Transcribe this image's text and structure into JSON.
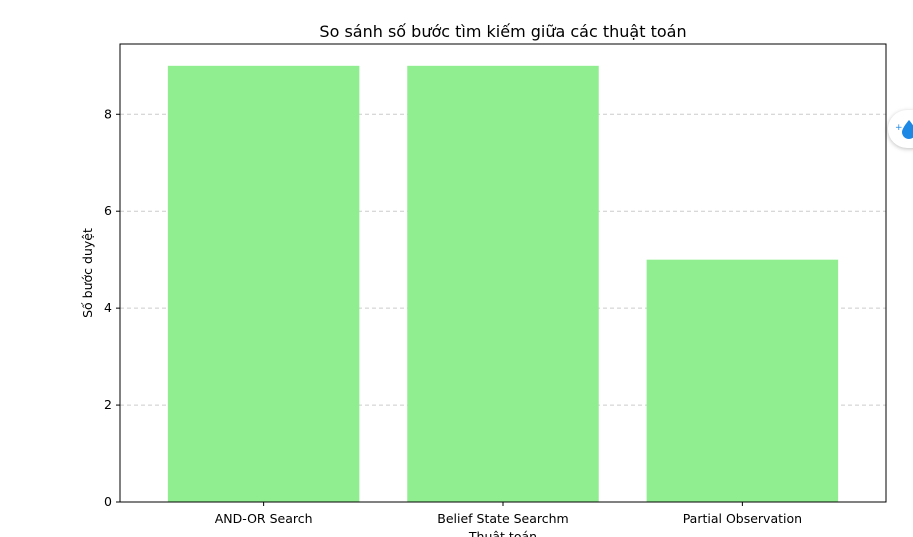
{
  "chart_data": {
    "type": "bar",
    "title": "So sánh số bước tìm kiếm giữa các thuật toán",
    "xlabel": "Thuật toán",
    "ylabel": "Số bước duyệt",
    "categories": [
      "AND-OR Search",
      "Belief State Searchm",
      "Partial Observation"
    ],
    "values": [
      9,
      9,
      5
    ],
    "ylim": [
      0,
      9.45
    ],
    "yticks": [
      0,
      2,
      4,
      6,
      8
    ],
    "grid": "y-dashed",
    "bar_color": "#90ee90",
    "grid_color": "#cccccc"
  },
  "widget": {
    "icon": "water-drop-icon",
    "color": "#1e88e5"
  }
}
